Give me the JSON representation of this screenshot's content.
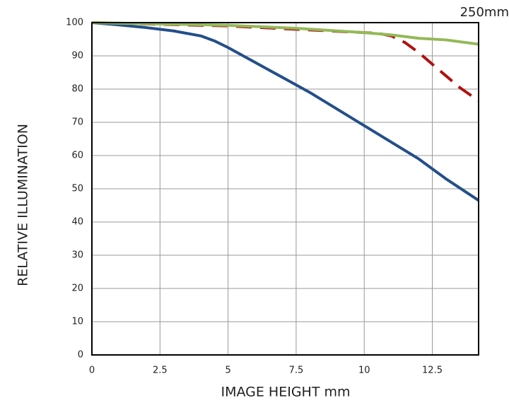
{
  "chart_data": {
    "type": "line",
    "annotation": "250mm",
    "x_label": "IMAGE HEIGHT mm",
    "y_label": "RELATIVE ILLUMINATION",
    "xlim": [
      0,
      14.2
    ],
    "ylim": [
      0,
      100
    ],
    "xticks": [
      0,
      2.5,
      5,
      7.5,
      10,
      12.5
    ],
    "yticks": [
      0,
      10,
      20,
      30,
      40,
      50,
      60,
      70,
      80,
      90,
      100
    ],
    "grid": true,
    "series": [
      {
        "color": "#b01010",
        "dashed": true,
        "x": [
          0,
          5,
          7.5,
          10,
          10.5,
          11,
          11.5,
          12,
          12.5,
          13,
          13.5,
          14.2
        ],
        "values": [
          100,
          99,
          98,
          97,
          96.8,
          96,
          94,
          91,
          87.5,
          84,
          80.5,
          76.5
        ]
      },
      {
        "color": "#234f8a",
        "dashed": false,
        "x": [
          0,
          1,
          2,
          3,
          4,
          4.5,
          5,
          6,
          7,
          8,
          9,
          10,
          11,
          12,
          13,
          14.2
        ],
        "values": [
          100,
          99.3,
          98.5,
          97.5,
          96,
          94.5,
          92.5,
          88,
          83.5,
          79,
          74,
          69,
          64,
          59,
          53,
          46.5
        ]
      },
      {
        "color": "#93b957",
        "dashed": false,
        "x": [
          0,
          5,
          7.5,
          10,
          11,
          12,
          13,
          14.2
        ],
        "values": [
          100,
          99.2,
          98.3,
          97,
          96.3,
          95.3,
          94.8,
          93.5
        ]
      }
    ]
  }
}
